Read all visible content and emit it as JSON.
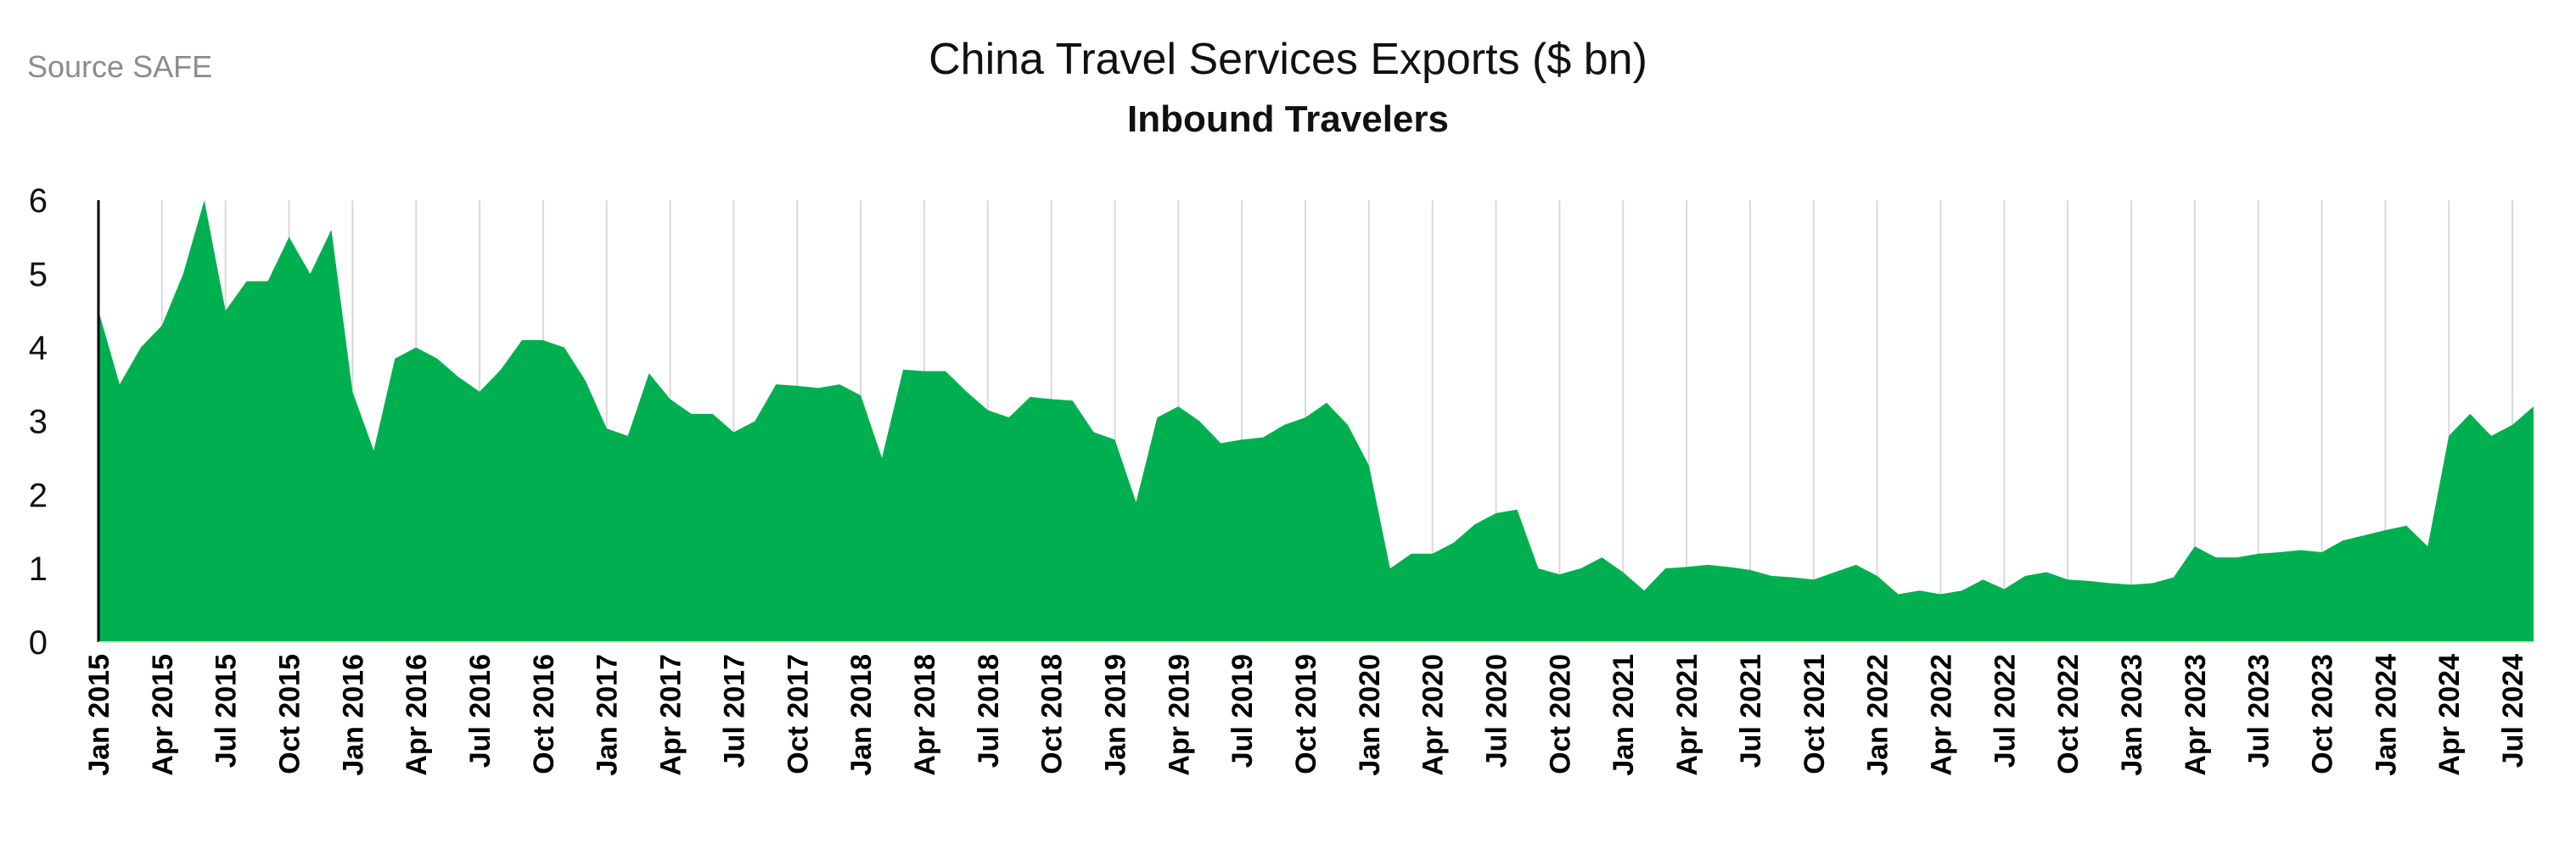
{
  "source": "Source SAFE",
  "chart_data": {
    "type": "area",
    "title": "China Travel Services Exports ($ bn)",
    "subtitle": "Inbound Travelers",
    "xlabel": "",
    "ylabel": "",
    "ylim": [
      0,
      6
    ],
    "yticks": [
      0,
      1,
      2,
      3,
      4,
      5,
      6
    ],
    "grid": "vertical",
    "color": "#00B050",
    "xtick_labels": [
      "Jan 2015",
      "Apr 2015",
      "Jul 2015",
      "Oct 2015",
      "Jan 2016",
      "Apr 2016",
      "Jul 2016",
      "Oct 2016",
      "Jan 2017",
      "Apr 2017",
      "Jul 2017",
      "Oct 2017",
      "Jan 2018",
      "Apr 2018",
      "Jul 2018",
      "Oct 2018",
      "Jan 2019",
      "Apr 2019",
      "Jul 2019",
      "Oct 2019",
      "Jan 2020",
      "Apr 2020",
      "Jul 2020",
      "Oct 2020",
      "Jan 2021",
      "Apr 2021",
      "Jul 2021",
      "Oct 2021",
      "Jan 2022",
      "Apr 2022",
      "Jul 2022",
      "Oct 2022",
      "Jan 2023",
      "Apr 2023",
      "Jul 2023",
      "Oct 2023",
      "Jan 2024",
      "Apr 2024",
      "Jul 2024"
    ],
    "x_start": "Jan 2015",
    "x_end": "Jul 2024",
    "values": [
      4.5,
      3.5,
      4.0,
      4.3,
      5.0,
      6.0,
      4.5,
      4.9,
      4.9,
      5.5,
      5.0,
      5.6,
      3.4,
      2.6,
      3.85,
      4.0,
      3.85,
      3.6,
      3.4,
      3.7,
      4.1,
      4.1,
      4.0,
      3.55,
      2.9,
      2.8,
      3.65,
      3.3,
      3.1,
      3.1,
      2.85,
      3.0,
      3.5,
      3.48,
      3.45,
      3.5,
      3.35,
      2.5,
      3.7,
      3.68,
      3.68,
      3.4,
      3.15,
      3.05,
      3.33,
      3.3,
      3.28,
      2.85,
      2.75,
      1.9,
      3.05,
      3.2,
      3.0,
      2.7,
      2.75,
      2.78,
      2.95,
      3.05,
      3.25,
      2.95,
      2.4,
      1.0,
      1.2,
      1.2,
      1.35,
      1.6,
      1.75,
      1.8,
      1.0,
      0.92,
      1.0,
      1.15,
      0.95,
      0.7,
      1.0,
      1.02,
      1.05,
      1.02,
      0.98,
      0.9,
      0.88,
      0.85,
      0.95,
      1.05,
      0.9,
      0.65,
      0.7,
      0.65,
      0.7,
      0.85,
      0.72,
      0.9,
      0.95,
      0.85,
      0.83,
      0.8,
      0.78,
      0.8,
      0.88,
      1.3,
      1.15,
      1.15,
      1.2,
      1.22,
      1.25,
      1.22,
      1.38,
      1.45,
      1.52,
      1.58,
      1.3,
      2.8,
      3.1,
      2.8,
      2.95,
      3.2
    ]
  }
}
